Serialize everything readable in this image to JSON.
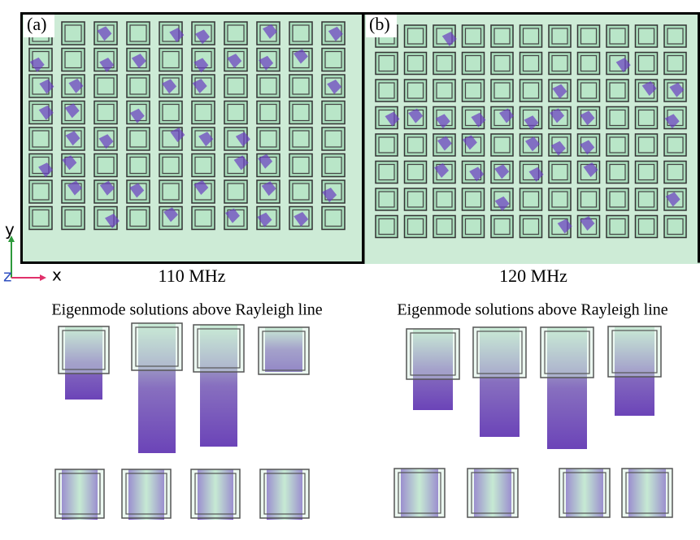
{
  "panels": [
    {
      "label": "(a)",
      "frequency": "110 MHz",
      "caption": "Eigenmode solutions above Rayleigh line"
    },
    {
      "label": "(b)",
      "frequency": "120 MHz",
      "caption": "Eigenmode solutions above Rayleigh line"
    }
  ],
  "axes": {
    "y": "y",
    "z": "z",
    "x": "x"
  }
}
